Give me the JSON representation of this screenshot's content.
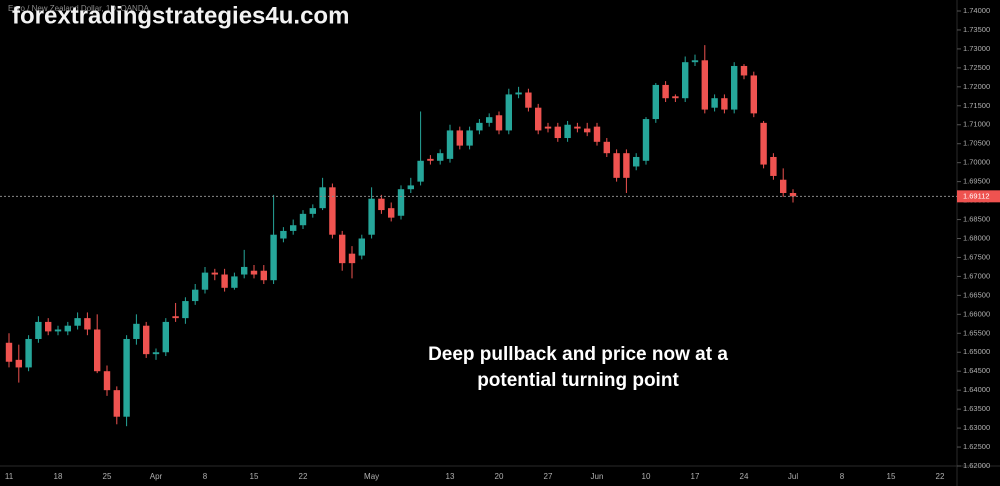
{
  "chart_data": {
    "type": "candlestick",
    "symbol_title": "Euro / New Zealand Dollar, 1D, OANDA",
    "watermark": "forextradingstrategies4u.com",
    "annotation": [
      "Deep pullback and price now at a",
      "potential turning point"
    ],
    "categories": [
      "11",
      null,
      null,
      null,
      null,
      "18",
      null,
      null,
      null,
      null,
      "25",
      null,
      null,
      null,
      null,
      "Apr",
      null,
      null,
      null,
      null,
      "8",
      null,
      null,
      null,
      null,
      "15",
      null,
      null,
      null,
      null,
      "22",
      null,
      null,
      null,
      null,
      null,
      null,
      "May",
      null,
      null,
      null,
      null,
      null,
      null,
      null,
      "13",
      null,
      null,
      null,
      null,
      "20",
      null,
      null,
      null,
      null,
      "27",
      null,
      null,
      null,
      null,
      "Jun",
      null,
      null,
      null,
      null,
      "10",
      null,
      null,
      null,
      null,
      "17",
      null,
      null,
      null,
      null,
      "24",
      null,
      null,
      null,
      null,
      "Jul",
      null,
      null,
      null,
      null,
      "8",
      null,
      null,
      null,
      null,
      "15",
      null,
      null,
      null,
      null,
      "22",
      null
    ],
    "open": [
      1.6525,
      1.648,
      1.646,
      1.6535,
      1.658,
      1.6555,
      1.6555,
      1.657,
      1.659,
      1.656,
      1.645,
      1.64,
      1.633,
      1.6535,
      1.657,
      1.6495,
      1.65,
      1.6595,
      1.659,
      1.6635,
      1.6665,
      1.671,
      1.6705,
      1.667,
      1.6705,
      1.6715,
      1.6715,
      1.669,
      1.68,
      1.682,
      1.6835,
      1.6865,
      1.688,
      1.6935,
      1.681,
      1.676,
      1.6755,
      1.681,
      1.6905,
      1.688,
      1.686,
      1.693,
      1.695,
      1.701,
      1.7005,
      1.701,
      1.7085,
      1.7045,
      1.7085,
      1.7105,
      1.7125,
      1.7085,
      1.718,
      1.7185,
      1.7145,
      1.7095,
      1.7095,
      1.7065,
      1.7095,
      1.709,
      1.7095,
      1.7055,
      1.7025,
      1.7025,
      1.699,
      1.7005,
      1.7115,
      1.7205,
      1.7175,
      1.717,
      1.7265,
      1.727,
      1.7145,
      1.717,
      1.714,
      1.7255,
      1.723,
      1.7105,
      1.7015,
      1.6955,
      1.692,
      null,
      null,
      null,
      null,
      null,
      null,
      null,
      null,
      null,
      null,
      null,
      null,
      null,
      null,
      null,
      null
    ],
    "high": [
      1.655,
      1.652,
      1.6545,
      1.6595,
      1.659,
      1.657,
      1.658,
      1.6605,
      1.6605,
      1.66,
      1.6465,
      1.641,
      1.6545,
      1.66,
      1.658,
      1.651,
      1.659,
      1.663,
      1.6645,
      1.668,
      1.6725,
      1.672,
      1.672,
      1.671,
      1.677,
      1.673,
      1.673,
      1.6915,
      1.683,
      1.685,
      1.6875,
      1.689,
      1.696,
      1.6945,
      1.682,
      1.678,
      1.681,
      1.6935,
      1.6915,
      1.6895,
      1.694,
      1.696,
      1.7135,
      1.702,
      1.7035,
      1.71,
      1.7095,
      1.7095,
      1.7115,
      1.713,
      1.7135,
      1.7195,
      1.72,
      1.7195,
      1.7155,
      1.7105,
      1.7105,
      1.711,
      1.7105,
      1.7105,
      1.7105,
      1.7065,
      1.7035,
      1.7035,
      1.7025,
      1.712,
      1.721,
      1.7215,
      1.718,
      1.728,
      1.7285,
      1.731,
      1.718,
      1.718,
      1.7265,
      1.726,
      1.724,
      1.711,
      1.7025,
      1.6985,
      1.693,
      null,
      null,
      null,
      null,
      null,
      null,
      null,
      null,
      null,
      null,
      null,
      null,
      null,
      null,
      null,
      null
    ],
    "low": [
      1.646,
      1.642,
      1.645,
      1.6525,
      1.6545,
      1.6545,
      1.6545,
      1.656,
      1.6545,
      1.6445,
      1.6385,
      1.631,
      1.6305,
      1.652,
      1.6485,
      1.648,
      1.649,
      1.658,
      1.6575,
      1.6625,
      1.6655,
      1.669,
      1.666,
      1.6665,
      1.6695,
      1.6695,
      1.668,
      1.668,
      1.679,
      1.681,
      1.6825,
      1.6855,
      1.6875,
      1.68,
      1.6715,
      1.6695,
      1.6745,
      1.68,
      1.6865,
      1.6845,
      1.685,
      1.692,
      1.694,
      1.6995,
      1.6995,
      1.7,
      1.7035,
      1.7035,
      1.7075,
      1.7095,
      1.7075,
      1.7075,
      1.717,
      1.7135,
      1.7075,
      1.708,
      1.7055,
      1.7055,
      1.708,
      1.707,
      1.7045,
      1.7015,
      1.695,
      1.692,
      1.698,
      1.6995,
      1.7105,
      1.716,
      1.716,
      1.716,
      1.7255,
      1.713,
      1.7135,
      1.713,
      1.713,
      1.722,
      1.712,
      1.6985,
      1.6955,
      1.691,
      1.6895,
      null,
      null,
      null,
      null,
      null,
      null,
      null,
      null,
      null,
      null,
      null,
      null,
      null,
      null,
      null,
      null
    ],
    "close": [
      1.6475,
      1.646,
      1.6535,
      1.658,
      1.6555,
      1.656,
      1.657,
      1.659,
      1.656,
      1.645,
      1.64,
      1.633,
      1.6535,
      1.6575,
      1.6495,
      1.65,
      1.658,
      1.659,
      1.6635,
      1.6665,
      1.671,
      1.6705,
      1.667,
      1.67,
      1.6725,
      1.6705,
      1.669,
      1.681,
      1.682,
      1.6835,
      1.6865,
      1.688,
      1.6935,
      1.681,
      1.6735,
      1.6735,
      1.68,
      1.6905,
      1.6875,
      1.6855,
      1.693,
      1.694,
      1.7005,
      1.7005,
      1.7025,
      1.7085,
      1.7045,
      1.7085,
      1.7105,
      1.712,
      1.7085,
      1.718,
      1.7185,
      1.7145,
      1.7085,
      1.709,
      1.7065,
      1.71,
      1.709,
      1.708,
      1.7055,
      1.7025,
      1.696,
      1.696,
      1.7015,
      1.7115,
      1.7205,
      1.717,
      1.717,
      1.7265,
      1.727,
      1.714,
      1.717,
      1.714,
      1.7255,
      1.723,
      1.713,
      1.6995,
      1.6965,
      1.692,
      1.69112,
      null,
      null,
      null,
      null,
      null,
      null,
      null,
      null,
      null,
      null,
      null,
      null,
      null,
      null,
      null,
      null
    ],
    "up_color": "#26a69a",
    "down_color": "#ef5350",
    "last_price": 1.69112,
    "ylim": [
      1.62,
      1.74
    ],
    "yticks": [
      {
        "value": 1.62,
        "label": "1.62000"
      },
      {
        "value": 1.625,
        "label": "1.62500"
      },
      {
        "value": 1.63,
        "label": "1.63000"
      },
      {
        "value": 1.635,
        "label": "1.63500"
      },
      {
        "value": 1.64,
        "label": "1.64000"
      },
      {
        "value": 1.645,
        "label": "1.64500"
      },
      {
        "value": 1.65,
        "label": "1.65000"
      },
      {
        "value": 1.655,
        "label": "1.65500"
      },
      {
        "value": 1.66,
        "label": "1.66000"
      },
      {
        "value": 1.665,
        "label": "1.66500"
      },
      {
        "value": 1.67,
        "label": "1.67000"
      },
      {
        "value": 1.675,
        "label": "1.67500"
      },
      {
        "value": 1.68,
        "label": "1.68000"
      },
      {
        "value": 1.685,
        "label": "1.68500"
      },
      {
        "value": 1.69,
        "label": "1.69000"
      },
      {
        "value": 1.695,
        "label": "1.69500"
      },
      {
        "value": 1.7,
        "label": "1.70000"
      },
      {
        "value": 1.705,
        "label": "1.70500"
      },
      {
        "value": 1.71,
        "label": "1.71000"
      },
      {
        "value": 1.715,
        "label": "1.71500"
      },
      {
        "value": 1.72,
        "label": "1.72000"
      },
      {
        "value": 1.725,
        "label": "1.72500"
      },
      {
        "value": 1.73,
        "label": "1.73000"
      },
      {
        "value": 1.735,
        "label": "1.73500"
      },
      {
        "value": 1.74,
        "label": "1.74000"
      }
    ],
    "grid": false
  }
}
